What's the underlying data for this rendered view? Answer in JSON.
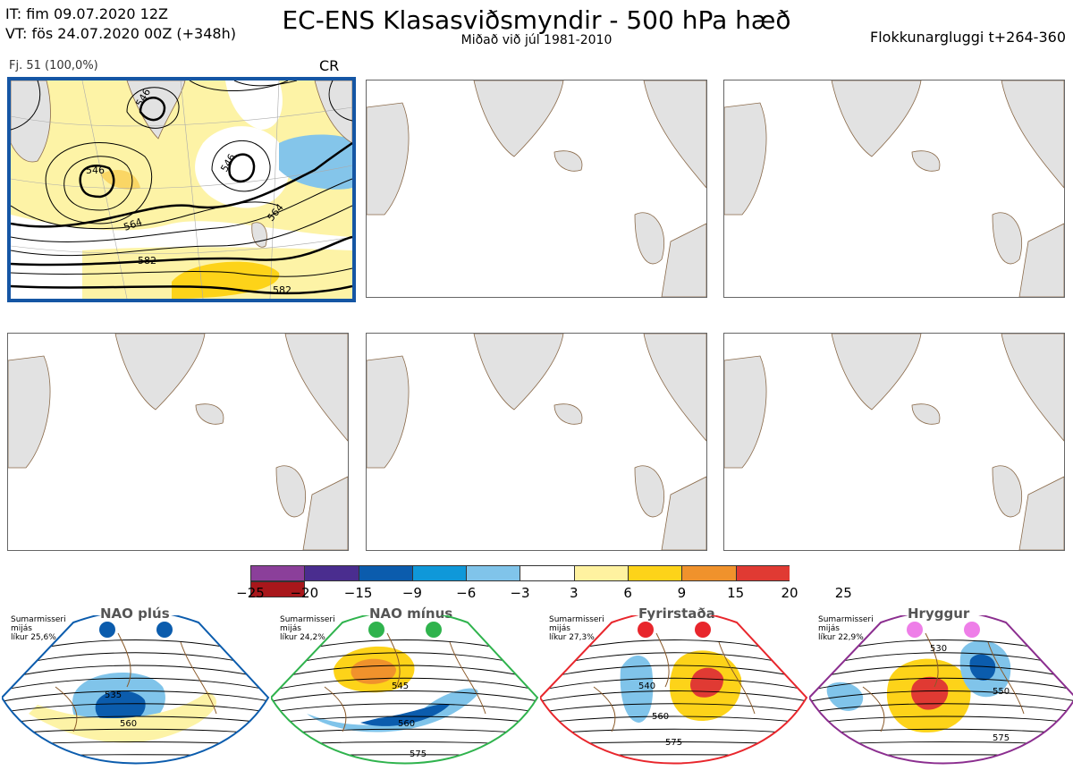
{
  "header": {
    "it": "IT: fim 09.07.2020 12Z",
    "vt": "VT: fös 24.07.2020 00Z  (+348h)",
    "title": "EC-ENS Klasasviðsmyndir - 500 hPa hæð",
    "subtitle": "Miðað við júl 1981-2010",
    "window": "Flokkunargluggi t+264-360"
  },
  "panel1": {
    "label": "Fj. 51 (100,0%)",
    "regime": "CR",
    "contours": [
      "546",
      "546",
      "546",
      "564",
      "564",
      "582",
      "582"
    ]
  },
  "colorbar": {
    "colors": [
      "#8b3f9a",
      "#4a2d8f",
      "#0b5cad",
      "#0f98d9",
      "#80c4ea",
      "#ffffff",
      "#fff2a0",
      "#fdd319",
      "#f0922c",
      "#e03a33",
      "#a8171b"
    ],
    "ticks": [
      "−25",
      "−20",
      "−15",
      "−9",
      "−6",
      "−3",
      "3",
      "6",
      "9",
      "15",
      "20",
      "25"
    ]
  },
  "regimes": [
    {
      "name": "NAO plús",
      "season": "Sumarmisseri",
      "level": "mijás",
      "prob": "líkur 25,6%",
      "color": "#0b5cad",
      "contours": [
        "535",
        "560"
      ]
    },
    {
      "name": "NAO mínus",
      "season": "Sumarmisseri",
      "level": "mijás",
      "prob": "líkur 24,2%",
      "color": "#2fb34d",
      "contours": [
        "545",
        "560",
        "575"
      ]
    },
    {
      "name": "Fyrirstaða",
      "season": "Sumarmisseri",
      "level": "mijás",
      "prob": "líkur 27,3%",
      "color": "#e8262c",
      "contours": [
        "540",
        "560",
        "575"
      ]
    },
    {
      "name": "Hryggur",
      "season": "Sumarmisseri",
      "level": "mijás",
      "prob": "líkur 22,9%",
      "color": "#8b2e8f",
      "contours": [
        "530",
        "550",
        "575"
      ]
    }
  ]
}
